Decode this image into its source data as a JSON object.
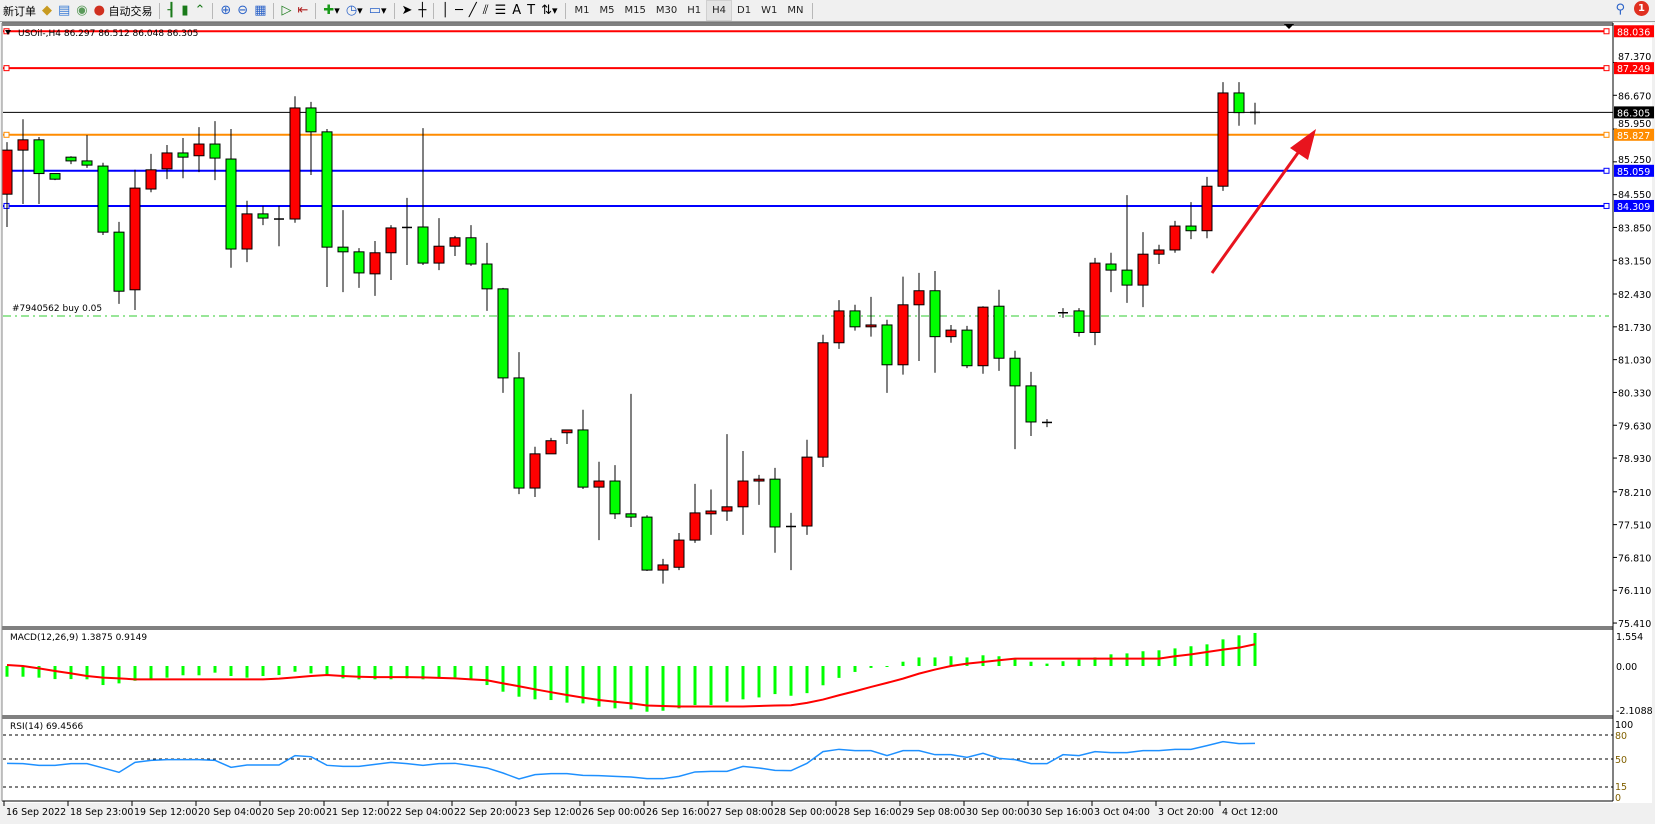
{
  "toolbar": {
    "new_order_label": "新订单",
    "auto_trading_label": "自动交易",
    "timeframes": [
      "M1",
      "M5",
      "M15",
      "M30",
      "H1",
      "H4",
      "D1",
      "W1",
      "MN"
    ],
    "active_timeframe": "H4",
    "notification_count": "1",
    "icons": [
      "new-order-icon",
      "market-watch-icon",
      "data-window-icon",
      "signals-icon",
      "auto-trading-icon",
      "bar-chart-icon",
      "candlestick-icon",
      "line-chart-icon",
      "zoom-in-icon",
      "zoom-out-icon",
      "tile-windows-icon",
      "auto-scroll-icon",
      "chart-shift-icon",
      "indicators-icon",
      "periods-icon",
      "templates-icon",
      "cursor-icon",
      "crosshair-icon",
      "vertical-line-icon",
      "horizontal-line-icon",
      "trendline-icon",
      "equidistant-channel-icon",
      "fibonacci-icon",
      "text-icon",
      "text-label-icon",
      "arrows-icon",
      "search-icon",
      "notification-icon"
    ]
  },
  "chart": {
    "header": "USOil-,H4  86.297 86.512 86.048 86.305",
    "order_label": "#7940562 buy 0.05",
    "order_price": 81.96,
    "current_price": "86.305",
    "colors": {
      "bull": "#ff0000",
      "bear": "#00ff00",
      "current": "#000000",
      "order": "#32cd32",
      "arrow": "#e8141e",
      "macd_hist": "#00ff00",
      "macd_signal": "#ff0000",
      "rsi": "#1e90ff"
    },
    "levels": [
      {
        "label": "88.036",
        "price": 88.036,
        "color": "#ff0000"
      },
      {
        "label": "87.249",
        "price": 87.249,
        "color": "#ff0000"
      },
      {
        "label": "85.827",
        "price": 85.827,
        "color": "#ff8c00"
      },
      {
        "label": "85.059",
        "price": 85.059,
        "color": "#0000ff"
      },
      {
        "label": "84.309",
        "price": 84.309,
        "color": "#0000ff"
      }
    ],
    "price_ticks": [
      "87.370",
      "86.670",
      "85.950",
      "85.250",
      "84.550",
      "83.850",
      "83.150",
      "82.430",
      "81.730",
      "81.030",
      "80.330",
      "79.630",
      "78.930",
      "78.210",
      "77.510",
      "76.810",
      "76.110",
      "75.410"
    ],
    "time_labels": [
      "16 Sep 2022",
      "18 Sep 23:00",
      "19 Sep 12:00",
      "20 Sep 04:00",
      "20 Sep 20:00",
      "21 Sep 12:00",
      "22 Sep 04:00",
      "22 Sep 20:00",
      "23 Sep 12:00",
      "26 Sep 00:00",
      "26 Sep 16:00",
      "27 Sep 08:00",
      "28 Sep 00:00",
      "28 Sep 16:00",
      "29 Sep 08:00",
      "30 Sep 00:00",
      "30 Sep 16:00",
      "3 Oct 04:00",
      "3 Oct 20:00",
      "4 Oct 12:00"
    ],
    "macd": {
      "label": "MACD(12,26,9) 1.3875 0.9149",
      "ticks": [
        "1.554",
        "0.00",
        "-2.1088"
      ]
    },
    "rsi": {
      "label": "RSI(14) 69.4566",
      "ticks": [
        "100",
        "80",
        "50",
        "15",
        "0"
      ]
    }
  },
  "chart_data": {
    "type": "candlestick",
    "symbol": "USOil-",
    "timeframe": "H4",
    "ylim": [
      75.41,
      88.1
    ],
    "ohlc": [
      [
        84.56,
        85.67,
        83.86,
        85.5
      ],
      [
        85.5,
        86.16,
        84.35,
        85.72
      ],
      [
        85.72,
        85.78,
        84.35,
        85.0
      ],
      [
        85.0,
        85.0,
        84.86,
        84.88
      ],
      [
        85.35,
        85.37,
        85.2,
        85.27
      ],
      [
        85.27,
        85.82,
        85.12,
        85.18
      ],
      [
        85.16,
        85.23,
        83.69,
        83.75
      ],
      [
        83.75,
        83.97,
        82.22,
        82.49
      ],
      [
        82.52,
        85.08,
        82.09,
        84.69
      ],
      [
        84.67,
        85.42,
        84.6,
        85.08
      ],
      [
        85.1,
        85.61,
        84.88,
        85.44
      ],
      [
        85.44,
        85.76,
        84.9,
        85.35
      ],
      [
        85.38,
        85.99,
        85.03,
        85.63
      ],
      [
        85.63,
        86.12,
        84.86,
        85.33
      ],
      [
        85.31,
        85.95,
        82.99,
        83.39
      ],
      [
        83.39,
        84.42,
        83.11,
        84.14
      ],
      [
        84.14,
        84.31,
        83.9,
        84.05
      ],
      [
        84.03,
        84.31,
        83.45,
        84.03
      ],
      [
        84.03,
        86.65,
        83.95,
        86.4
      ],
      [
        86.4,
        86.53,
        84.97,
        85.89
      ],
      [
        85.89,
        85.95,
        82.58,
        83.43
      ],
      [
        83.43,
        84.22,
        82.47,
        83.33
      ],
      [
        83.33,
        83.41,
        82.56,
        82.88
      ],
      [
        82.86,
        83.56,
        82.39,
        83.31
      ],
      [
        83.31,
        83.9,
        82.73,
        83.84
      ],
      [
        83.84,
        84.48,
        83.05,
        83.85
      ],
      [
        83.86,
        85.97,
        83.05,
        83.09
      ],
      [
        83.09,
        84.05,
        82.94,
        83.45
      ],
      [
        83.45,
        83.67,
        83.24,
        83.63
      ],
      [
        83.63,
        83.9,
        83.03,
        83.07
      ],
      [
        83.07,
        83.52,
        82.07,
        82.54
      ],
      [
        82.54,
        82.56,
        80.32,
        80.64
      ],
      [
        80.64,
        81.19,
        78.16,
        78.29
      ],
      [
        78.29,
        79.17,
        78.1,
        79.02
      ],
      [
        79.02,
        79.36,
        79.02,
        79.3
      ],
      [
        79.47,
        79.53,
        79.23,
        79.53
      ],
      [
        79.53,
        79.96,
        78.27,
        78.31
      ],
      [
        78.31,
        78.85,
        77.18,
        78.44
      ],
      [
        78.44,
        78.78,
        77.63,
        77.74
      ],
      [
        77.74,
        80.3,
        77.46,
        77.67
      ],
      [
        77.67,
        77.71,
        76.52,
        76.54
      ],
      [
        76.54,
        76.78,
        76.25,
        76.65
      ],
      [
        76.6,
        77.33,
        76.54,
        77.18
      ],
      [
        77.18,
        78.38,
        77.12,
        77.76
      ],
      [
        77.74,
        78.26,
        77.29,
        77.8
      ],
      [
        77.8,
        79.44,
        77.59,
        77.89
      ],
      [
        77.89,
        79.08,
        77.29,
        78.44
      ],
      [
        78.44,
        78.57,
        77.93,
        78.48
      ],
      [
        78.48,
        78.72,
        76.91,
        77.46
      ],
      [
        77.46,
        77.76,
        76.54,
        77.47
      ],
      [
        77.48,
        79.32,
        77.29,
        78.95
      ],
      [
        78.95,
        81.56,
        78.74,
        81.39
      ],
      [
        81.39,
        82.3,
        81.26,
        82.07
      ],
      [
        82.07,
        82.2,
        81.65,
        81.73
      ],
      [
        81.73,
        82.37,
        81.52,
        81.77
      ],
      [
        81.77,
        81.88,
        80.32,
        80.92
      ],
      [
        80.92,
        82.8,
        80.71,
        82.2
      ],
      [
        82.2,
        82.88,
        81.0,
        82.5
      ],
      [
        82.5,
        82.92,
        80.75,
        81.52
      ],
      [
        81.52,
        81.77,
        81.39,
        81.66
      ],
      [
        81.66,
        81.75,
        80.85,
        80.9
      ],
      [
        80.9,
        82.17,
        80.73,
        82.15
      ],
      [
        82.17,
        82.52,
        80.79,
        81.06
      ],
      [
        81.06,
        81.22,
        79.12,
        80.47
      ],
      [
        80.47,
        80.77,
        79.4,
        79.7
      ],
      [
        79.68,
        79.76,
        79.59,
        79.69
      ],
      [
        82.03,
        82.13,
        81.92,
        82.03
      ],
      [
        82.07,
        82.13,
        81.52,
        81.61
      ],
      [
        81.61,
        83.2,
        81.34,
        83.09
      ],
      [
        83.07,
        83.31,
        82.47,
        82.94
      ],
      [
        82.94,
        84.54,
        82.24,
        82.62
      ],
      [
        82.62,
        83.75,
        82.15,
        83.28
      ],
      [
        83.28,
        83.48,
        83.07,
        83.37
      ],
      [
        83.37,
        83.99,
        83.31,
        83.88
      ],
      [
        83.88,
        84.39,
        83.6,
        83.78
      ],
      [
        83.78,
        84.93,
        83.62,
        84.73
      ],
      [
        84.73,
        86.95,
        84.63,
        86.72
      ],
      [
        86.72,
        86.95,
        86.02,
        86.3
      ],
      [
        86.297,
        86.512,
        86.048,
        86.305
      ]
    ],
    "macd_histogram": [
      -0.45,
      -0.45,
      -0.49,
      -0.55,
      -0.55,
      -0.56,
      -0.8,
      -0.73,
      -0.62,
      -0.59,
      -0.49,
      -0.39,
      -0.39,
      -0.28,
      -0.42,
      -0.49,
      -0.42,
      -0.38,
      -0.24,
      -0.31,
      -0.42,
      -0.52,
      -0.56,
      -0.56,
      -0.56,
      -0.52,
      -0.56,
      -0.48,
      -0.48,
      -0.59,
      -0.8,
      -1.08,
      -1.29,
      -1.4,
      -1.43,
      -1.54,
      -1.57,
      -1.71,
      -1.78,
      -1.82,
      -1.92,
      -1.88,
      -1.78,
      -1.64,
      -1.64,
      -1.5,
      -1.4,
      -1.32,
      -1.18,
      -1.25,
      -1.14,
      -0.81,
      -0.5,
      -0.25,
      -0.08,
      -0.01,
      0.18,
      0.36,
      0.36,
      0.41,
      0.36,
      0.45,
      0.41,
      0.28,
      0.18,
      0.1,
      0.2,
      0.27,
      0.36,
      0.49,
      0.53,
      0.62,
      0.66,
      0.74,
      0.83,
      0.91,
      1.12,
      1.29,
      1.3875
    ],
    "macd_signal": [
      0.04,
      0,
      -0.1,
      -0.21,
      -0.31,
      -0.42,
      -0.49,
      -0.52,
      -0.56,
      -0.56,
      -0.56,
      -0.56,
      -0.56,
      -0.56,
      -0.56,
      -0.56,
      -0.56,
      -0.53,
      -0.48,
      -0.42,
      -0.38,
      -0.42,
      -0.45,
      -0.47,
      -0.47,
      -0.47,
      -0.48,
      -0.5,
      -0.52,
      -0.56,
      -0.6,
      -0.73,
      -0.85,
      -0.98,
      -1.1,
      -1.22,
      -1.33,
      -1.43,
      -1.5,
      -1.57,
      -1.66,
      -1.68,
      -1.7,
      -1.7,
      -1.7,
      -1.7,
      -1.7,
      -1.68,
      -1.66,
      -1.65,
      -1.55,
      -1.41,
      -1.23,
      -1.06,
      -0.88,
      -0.71,
      -0.53,
      -0.32,
      -0.15,
      0,
      0.1,
      0.17,
      0.24,
      0.31,
      0.31,
      0.31,
      0.31,
      0.31,
      0.31,
      0.31,
      0.31,
      0.31,
      0.31,
      0.41,
      0.49,
      0.59,
      0.69,
      0.77,
      0.9149
    ],
    "macd_range": [
      -2.1088,
      1.554
    ],
    "rsi": [
      44.6,
      44.2,
      42.1,
      42.1,
      44.2,
      44.2,
      38.8,
      33.3,
      45.8,
      48.3,
      49.2,
      49.2,
      49.2,
      48.3,
      39.6,
      42.5,
      42.5,
      42.5,
      54.2,
      52.9,
      42.1,
      40.8,
      40.8,
      43.3,
      45.8,
      44.2,
      42.1,
      44.2,
      44.6,
      41.7,
      38.8,
      32.5,
      25.0,
      30.4,
      31.7,
      31.7,
      29.6,
      29.2,
      28.3,
      27.5,
      25.4,
      25.4,
      28.3,
      33.8,
      34.6,
      34.6,
      40.8,
      38.8,
      35.8,
      35.4,
      44.6,
      59.2,
      62.1,
      60.4,
      60.4,
      54.2,
      60.4,
      60.4,
      55.4,
      55.4,
      52.1,
      57.1,
      50.8,
      49.2,
      44.2,
      44.2,
      55.4,
      54.2,
      59.2,
      57.9,
      57.9,
      60.4,
      60.4,
      62.1,
      62.1,
      66.7,
      71.7,
      69.2,
      69.4566
    ],
    "rsi_levels": [
      80,
      50,
      15
    ],
    "grid": false
  }
}
